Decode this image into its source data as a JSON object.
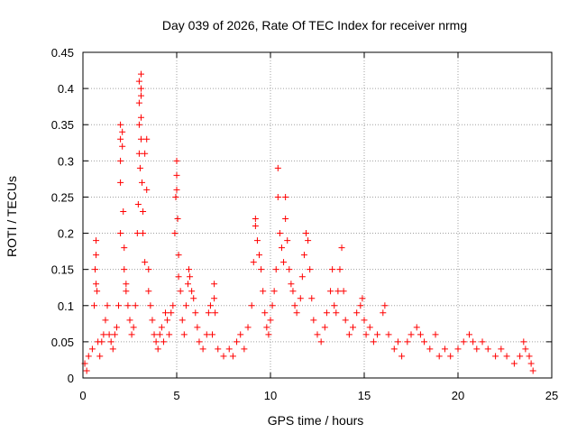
{
  "colors": {
    "points": "#ff0000",
    "grid": "#a0a0a0",
    "axis": "#000000",
    "background": "#ffffff"
  },
  "chart_data": {
    "type": "scatter",
    "title": "Day 039 of 2026, Rate Of TEC Index for receiver nrmg",
    "xlabel": "GPS time / hours",
    "ylabel": "ROTI / TECUs",
    "xlim": [
      0,
      25
    ],
    "ylim": [
      0,
      0.45
    ],
    "xticks": [
      0,
      5,
      10,
      15,
      20,
      25
    ],
    "xtick_labels": [
      "0",
      "5",
      "10",
      "15",
      "20",
      "25"
    ],
    "yticks": [
      0,
      0.05,
      0.1,
      0.15,
      0.2,
      0.25,
      0.3,
      0.35,
      0.4,
      0.45
    ],
    "ytick_labels": [
      "0",
      "0.05",
      "0.1",
      "0.15",
      "0.2",
      "0.25",
      "0.3",
      "0.35",
      "0.4",
      "0.45"
    ],
    "grid": true,
    "marker": "plus",
    "series": [
      {
        "name": "ROTI",
        "points": [
          [
            0.1,
            0.02
          ],
          [
            0.2,
            0.01
          ],
          [
            0.3,
            0.03
          ],
          [
            0.5,
            0.04
          ],
          [
            0.6,
            0.1
          ],
          [
            0.65,
            0.15
          ],
          [
            0.7,
            0.19
          ],
          [
            0.7,
            0.17
          ],
          [
            0.7,
            0.13
          ],
          [
            0.75,
            0.12
          ],
          [
            0.8,
            0.05
          ],
          [
            0.9,
            0.03
          ],
          [
            1.0,
            0.05
          ],
          [
            1.1,
            0.06
          ],
          [
            1.2,
            0.08
          ],
          [
            1.3,
            0.1
          ],
          [
            1.4,
            0.06
          ],
          [
            1.5,
            0.05
          ],
          [
            1.6,
            0.04
          ],
          [
            1.7,
            0.06
          ],
          [
            1.8,
            0.07
          ],
          [
            1.9,
            0.1
          ],
          [
            2.0,
            0.2
          ],
          [
            2.0,
            0.27
          ],
          [
            2.0,
            0.3
          ],
          [
            2.0,
            0.33
          ],
          [
            2.0,
            0.35
          ],
          [
            2.1,
            0.34
          ],
          [
            2.1,
            0.32
          ],
          [
            2.15,
            0.23
          ],
          [
            2.2,
            0.18
          ],
          [
            2.2,
            0.15
          ],
          [
            2.3,
            0.12
          ],
          [
            2.3,
            0.13
          ],
          [
            2.4,
            0.1
          ],
          [
            2.5,
            0.08
          ],
          [
            2.6,
            0.06
          ],
          [
            2.7,
            0.07
          ],
          [
            2.8,
            0.1
          ],
          [
            2.9,
            0.2
          ],
          [
            2.95,
            0.24
          ],
          [
            3.0,
            0.41
          ],
          [
            3.0,
            0.38
          ],
          [
            3.0,
            0.35
          ],
          [
            3.0,
            0.31
          ],
          [
            3.05,
            0.29
          ],
          [
            3.1,
            0.4
          ],
          [
            3.1,
            0.42
          ],
          [
            3.1,
            0.39
          ],
          [
            3.1,
            0.36
          ],
          [
            3.1,
            0.33
          ],
          [
            3.15,
            0.27
          ],
          [
            3.2,
            0.23
          ],
          [
            3.2,
            0.2
          ],
          [
            3.3,
            0.16
          ],
          [
            3.3,
            0.31
          ],
          [
            3.4,
            0.26
          ],
          [
            3.4,
            0.33
          ],
          [
            3.5,
            0.15
          ],
          [
            3.5,
            0.12
          ],
          [
            3.6,
            0.1
          ],
          [
            3.7,
            0.08
          ],
          [
            3.8,
            0.06
          ],
          [
            3.9,
            0.05
          ],
          [
            4.0,
            0.04
          ],
          [
            4.1,
            0.06
          ],
          [
            4.2,
            0.07
          ],
          [
            4.3,
            0.05
          ],
          [
            4.4,
            0.09
          ],
          [
            4.5,
            0.08
          ],
          [
            4.6,
            0.06
          ],
          [
            4.7,
            0.09
          ],
          [
            4.8,
            0.1
          ],
          [
            4.9,
            0.2
          ],
          [
            4.95,
            0.25
          ],
          [
            5.0,
            0.3
          ],
          [
            5.0,
            0.28
          ],
          [
            5.0,
            0.26
          ],
          [
            5.05,
            0.22
          ],
          [
            5.1,
            0.17
          ],
          [
            5.1,
            0.14
          ],
          [
            5.2,
            0.12
          ],
          [
            5.3,
            0.08
          ],
          [
            5.4,
            0.06
          ],
          [
            5.5,
            0.1
          ],
          [
            5.6,
            0.13
          ],
          [
            5.65,
            0.15
          ],
          [
            5.7,
            0.14
          ],
          [
            5.8,
            0.12
          ],
          [
            5.9,
            0.11
          ],
          [
            6.0,
            0.09
          ],
          [
            6.1,
            0.07
          ],
          [
            6.2,
            0.05
          ],
          [
            6.4,
            0.04
          ],
          [
            6.6,
            0.06
          ],
          [
            6.7,
            0.09
          ],
          [
            6.8,
            0.1
          ],
          [
            6.9,
            0.06
          ],
          [
            7.0,
            0.13
          ],
          [
            7.0,
            0.11
          ],
          [
            7.05,
            0.09
          ],
          [
            7.2,
            0.04
          ],
          [
            7.5,
            0.03
          ],
          [
            7.8,
            0.04
          ],
          [
            8.0,
            0.03
          ],
          [
            8.2,
            0.05
          ],
          [
            8.4,
            0.06
          ],
          [
            8.6,
            0.04
          ],
          [
            8.8,
            0.07
          ],
          [
            9.0,
            0.1
          ],
          [
            9.1,
            0.16
          ],
          [
            9.2,
            0.21
          ],
          [
            9.2,
            0.22
          ],
          [
            9.3,
            0.19
          ],
          [
            9.4,
            0.17
          ],
          [
            9.5,
            0.15
          ],
          [
            9.6,
            0.12
          ],
          [
            9.7,
            0.09
          ],
          [
            9.8,
            0.07
          ],
          [
            9.9,
            0.06
          ],
          [
            10.0,
            0.08
          ],
          [
            10.1,
            0.1
          ],
          [
            10.2,
            0.12
          ],
          [
            10.3,
            0.15
          ],
          [
            10.4,
            0.29
          ],
          [
            10.4,
            0.25
          ],
          [
            10.5,
            0.2
          ],
          [
            10.6,
            0.18
          ],
          [
            10.7,
            0.16
          ],
          [
            10.8,
            0.22
          ],
          [
            10.8,
            0.25
          ],
          [
            10.9,
            0.19
          ],
          [
            11.0,
            0.15
          ],
          [
            11.1,
            0.13
          ],
          [
            11.2,
            0.12
          ],
          [
            11.3,
            0.1
          ],
          [
            11.4,
            0.09
          ],
          [
            11.6,
            0.11
          ],
          [
            11.7,
            0.14
          ],
          [
            11.8,
            0.17
          ],
          [
            11.9,
            0.2
          ],
          [
            12.0,
            0.19
          ],
          [
            12.1,
            0.15
          ],
          [
            12.2,
            0.11
          ],
          [
            12.3,
            0.08
          ],
          [
            12.5,
            0.06
          ],
          [
            12.7,
            0.05
          ],
          [
            12.9,
            0.07
          ],
          [
            13.0,
            0.09
          ],
          [
            13.2,
            0.12
          ],
          [
            13.3,
            0.15
          ],
          [
            13.4,
            0.1
          ],
          [
            13.5,
            0.09
          ],
          [
            13.6,
            0.12
          ],
          [
            13.7,
            0.15
          ],
          [
            13.8,
            0.18
          ],
          [
            13.9,
            0.12
          ],
          [
            14.0,
            0.08
          ],
          [
            14.2,
            0.06
          ],
          [
            14.4,
            0.07
          ],
          [
            14.6,
            0.09
          ],
          [
            14.8,
            0.1
          ],
          [
            14.9,
            0.11
          ],
          [
            15.0,
            0.08
          ],
          [
            15.1,
            0.06
          ],
          [
            15.3,
            0.07
          ],
          [
            15.5,
            0.05
          ],
          [
            15.7,
            0.06
          ],
          [
            16.0,
            0.09
          ],
          [
            16.1,
            0.1
          ],
          [
            16.3,
            0.06
          ],
          [
            16.6,
            0.04
          ],
          [
            16.8,
            0.05
          ],
          [
            17.0,
            0.03
          ],
          [
            17.3,
            0.05
          ],
          [
            17.5,
            0.06
          ],
          [
            17.8,
            0.07
          ],
          [
            18.0,
            0.06
          ],
          [
            18.2,
            0.05
          ],
          [
            18.5,
            0.04
          ],
          [
            18.8,
            0.06
          ],
          [
            19.0,
            0.03
          ],
          [
            19.3,
            0.04
          ],
          [
            19.6,
            0.03
          ],
          [
            20.0,
            0.04
          ],
          [
            20.3,
            0.05
          ],
          [
            20.6,
            0.06
          ],
          [
            20.8,
            0.05
          ],
          [
            21.0,
            0.04
          ],
          [
            21.3,
            0.05
          ],
          [
            21.6,
            0.04
          ],
          [
            22.0,
            0.03
          ],
          [
            22.3,
            0.04
          ],
          [
            22.6,
            0.03
          ],
          [
            23.0,
            0.02
          ],
          [
            23.3,
            0.03
          ],
          [
            23.5,
            0.05
          ],
          [
            23.6,
            0.04
          ],
          [
            23.8,
            0.03
          ],
          [
            23.9,
            0.02
          ],
          [
            24.0,
            0.01
          ]
        ]
      }
    ]
  }
}
